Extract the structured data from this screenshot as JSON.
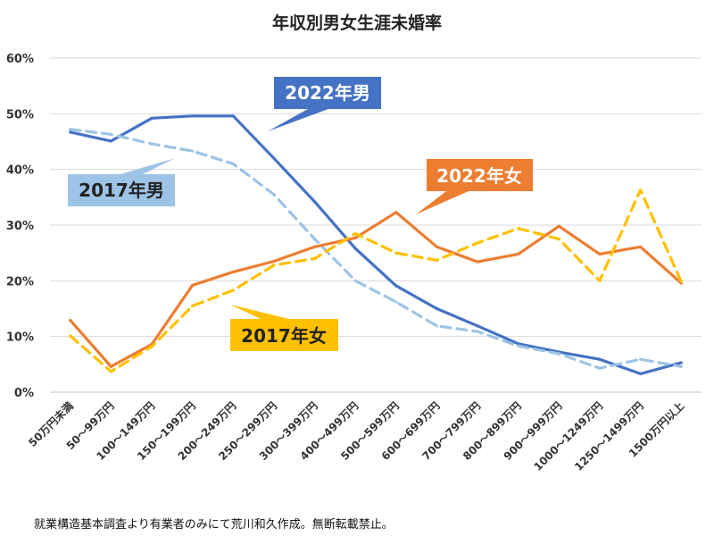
{
  "chart_data": {
    "type": "line",
    "title": "年収別男女生涯未婚率",
    "categories": [
      "50万円未満",
      "50～99万円",
      "100～149万円",
      "150～199万円",
      "200～249万円",
      "250～299万円",
      "300～399万円",
      "400～499万円",
      "500～599万円",
      "600～699万円",
      "700～799万円",
      "800～899万円",
      "900～999万円",
      "1000～1249万円",
      "1250～1499万円",
      "1500万円以上"
    ],
    "ylim": [
      0,
      60
    ],
    "yticks": [
      0,
      10,
      20,
      30,
      40,
      50,
      60
    ],
    "ytick_labels": [
      "0%",
      "10%",
      "20%",
      "30%",
      "40%",
      "50%",
      "60%"
    ],
    "series": [
      {
        "name": "2022年男",
        "color": "#4472C4",
        "style": "solid",
        "values": [
          46.7,
          45.1,
          49.2,
          49.6,
          49.6,
          42.0,
          34.2,
          25.8,
          19.1,
          15.0,
          11.9,
          8.7,
          7.2,
          5.9,
          3.3,
          5.3
        ]
      },
      {
        "name": "2017年男",
        "color": "#9DC3E6",
        "style": "dashed",
        "values": [
          47.2,
          46.3,
          44.6,
          43.3,
          41.0,
          35.5,
          27.5,
          20.0,
          16.2,
          11.9,
          10.9,
          8.3,
          6.9,
          4.3,
          5.9,
          4.6
        ]
      },
      {
        "name": "2022年女",
        "color": "#ED7D31",
        "style": "solid",
        "values": [
          12.9,
          4.6,
          8.6,
          19.2,
          21.6,
          23.5,
          26.1,
          27.7,
          32.3,
          26.1,
          23.4,
          24.8,
          29.8,
          24.8,
          26.1,
          19.6
        ]
      },
      {
        "name": "2017年女",
        "color": "#FFC000",
        "style": "dashed",
        "values": [
          10.1,
          3.7,
          8.2,
          15.5,
          18.3,
          22.8,
          24.0,
          28.5,
          25.0,
          23.7,
          26.8,
          29.4,
          27.5,
          20.0,
          36.3,
          19.9
        ]
      }
    ],
    "callouts": [
      {
        "text": "2022年男",
        "fill": "#4472C4",
        "text_style": "light"
      },
      {
        "text": "2017年男",
        "fill": "#9DC3E6",
        "text_style": "dark"
      },
      {
        "text": "2022年女",
        "fill": "#ED7D31",
        "text_style": "light"
      },
      {
        "text": "2017年女",
        "fill": "#FFC000",
        "text_style": "dark"
      }
    ],
    "grid": true
  },
  "footnote": "就業構造基本調査より有業者のみにて荒川和久作成。無断転載禁止。"
}
